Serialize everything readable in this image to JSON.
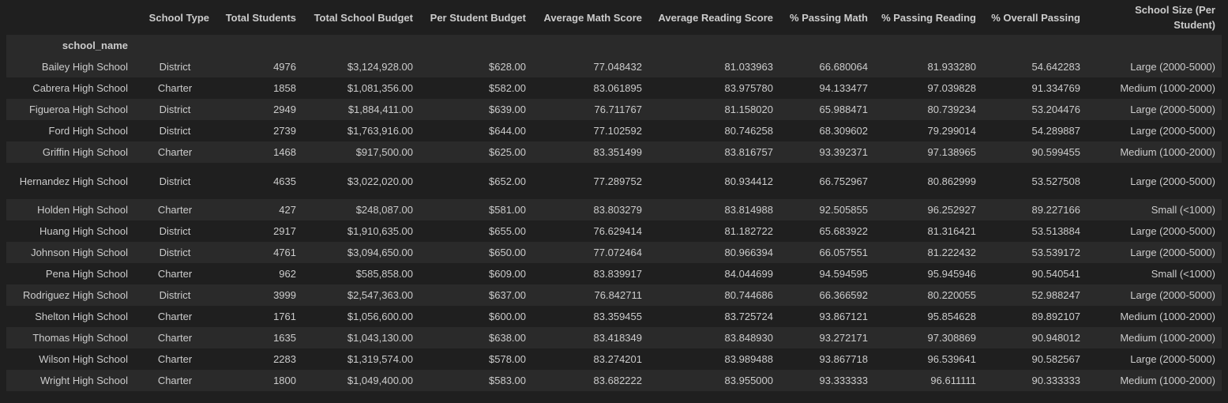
{
  "table": {
    "columns": [
      "School Type",
      "Total Students",
      "Total School Budget",
      "Per Student Budget",
      "Average Math Score",
      "Average Reading Score",
      "% Passing Math",
      "% Passing Reading",
      "% Overall Passing",
      "School Size (Per Student)"
    ],
    "index_name": "school_name",
    "rows": [
      {
        "name": "Bailey High School",
        "cells": [
          "District",
          "4976",
          "$3,124,928.00",
          "$628.00",
          "77.048432",
          "81.033963",
          "66.680064",
          "81.933280",
          "54.642283",
          "Large (2000-5000)"
        ]
      },
      {
        "name": "Cabrera High School",
        "cells": [
          "Charter",
          "1858",
          "$1,081,356.00",
          "$582.00",
          "83.061895",
          "83.975780",
          "94.133477",
          "97.039828",
          "91.334769",
          "Medium (1000-2000)"
        ]
      },
      {
        "name": "Figueroa High School",
        "cells": [
          "District",
          "2949",
          "$1,884,411.00",
          "$639.00",
          "76.711767",
          "81.158020",
          "65.988471",
          "80.739234",
          "53.204476",
          "Large (2000-5000)"
        ]
      },
      {
        "name": "Ford High School",
        "cells": [
          "District",
          "2739",
          "$1,763,916.00",
          "$644.00",
          "77.102592",
          "80.746258",
          "68.309602",
          "79.299014",
          "54.289887",
          "Large (2000-5000)"
        ]
      },
      {
        "name": "Griffin High School",
        "cells": [
          "Charter",
          "1468",
          "$917,500.00",
          "$625.00",
          "83.351499",
          "83.816757",
          "93.392371",
          "97.138965",
          "90.599455",
          "Medium (1000-2000)"
        ]
      },
      {
        "name": "Hernandez High School",
        "cells": [
          "District",
          "4635",
          "$3,022,020.00",
          "$652.00",
          "77.289752",
          "80.934412",
          "66.752967",
          "80.862999",
          "53.527508",
          "Large (2000-5000)"
        ]
      },
      {
        "name": "Holden High School",
        "cells": [
          "Charter",
          "427",
          "$248,087.00",
          "$581.00",
          "83.803279",
          "83.814988",
          "92.505855",
          "96.252927",
          "89.227166",
          "Small (<1000)"
        ]
      },
      {
        "name": "Huang High School",
        "cells": [
          "District",
          "2917",
          "$1,910,635.00",
          "$655.00",
          "76.629414",
          "81.182722",
          "65.683922",
          "81.316421",
          "53.513884",
          "Large (2000-5000)"
        ]
      },
      {
        "name": "Johnson High School",
        "cells": [
          "District",
          "4761",
          "$3,094,650.00",
          "$650.00",
          "77.072464",
          "80.966394",
          "66.057551",
          "81.222432",
          "53.539172",
          "Large (2000-5000)"
        ]
      },
      {
        "name": "Pena High School",
        "cells": [
          "Charter",
          "962",
          "$585,858.00",
          "$609.00",
          "83.839917",
          "84.044699",
          "94.594595",
          "95.945946",
          "90.540541",
          "Small (<1000)"
        ]
      },
      {
        "name": "Rodriguez High School",
        "cells": [
          "District",
          "3999",
          "$2,547,363.00",
          "$637.00",
          "76.842711",
          "80.744686",
          "66.366592",
          "80.220055",
          "52.988247",
          "Large (2000-5000)"
        ]
      },
      {
        "name": "Shelton High School",
        "cells": [
          "Charter",
          "1761",
          "$1,056,600.00",
          "$600.00",
          "83.359455",
          "83.725724",
          "93.867121",
          "95.854628",
          "89.892107",
          "Medium (1000-2000)"
        ]
      },
      {
        "name": "Thomas High School",
        "cells": [
          "Charter",
          "1635",
          "$1,043,130.00",
          "$638.00",
          "83.418349",
          "83.848930",
          "93.272171",
          "97.308869",
          "90.948012",
          "Medium (1000-2000)"
        ]
      },
      {
        "name": "Wilson High School",
        "cells": [
          "Charter",
          "2283",
          "$1,319,574.00",
          "$578.00",
          "83.274201",
          "83.989488",
          "93.867718",
          "96.539641",
          "90.582567",
          "Large (2000-5000)"
        ]
      },
      {
        "name": "Wright High School",
        "cells": [
          "Charter",
          "1800",
          "$1,049,400.00",
          "$583.00",
          "83.682222",
          "83.955000",
          "93.333333",
          "96.611111",
          "90.333333",
          "Medium (1000-2000)"
        ]
      }
    ]
  }
}
